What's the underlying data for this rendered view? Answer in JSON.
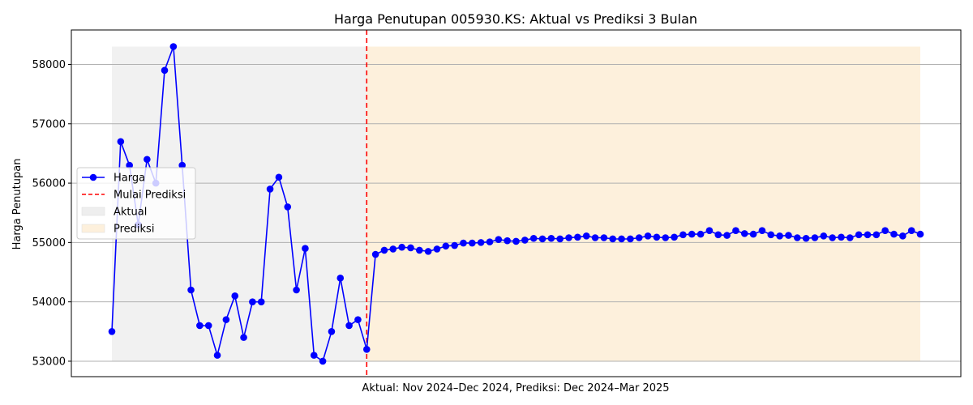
{
  "chart_data": {
    "type": "line",
    "title": "Harga Penutupan 005930.KS: Aktual vs Prediksi 3 Bulan",
    "xlabel": "Aktual: Nov 2024–Dec 2024, Prediksi: Dec 2024–Mar 2025",
    "ylabel": "Harga Penutupan",
    "ylim": [
      52740,
      58580
    ],
    "yticks": [
      53000,
      54000,
      55000,
      56000,
      57000,
      58000
    ],
    "grid": "y",
    "legend_position": "center-left",
    "series": [
      {
        "name": "Harga",
        "color": "#0000ff",
        "marker": "circle",
        "values": [
          53500,
          56700,
          56300,
          55300,
          56400,
          56000,
          57900,
          58300,
          56300,
          54200,
          53600,
          53600,
          53100,
          53700,
          54100,
          53400,
          54000,
          54000,
          55900,
          56100,
          55600,
          54200,
          54900,
          53100,
          53000,
          53500,
          54400,
          53600,
          53700,
          53200,
          54800,
          54870,
          54890,
          54920,
          54910,
          54870,
          54850,
          54890,
          54940,
          54950,
          54990,
          54990,
          55000,
          55010,
          55050,
          55030,
          55020,
          55040,
          55070,
          55060,
          55070,
          55060,
          55080,
          55090,
          55110,
          55080,
          55080,
          55060,
          55060,
          55060,
          55080,
          55110,
          55090,
          55080,
          55090,
          55130,
          55140,
          55140,
          55200,
          55130,
          55120,
          55200,
          55150,
          55140,
          55200,
          55130,
          55110,
          55120,
          55080,
          55070,
          55080,
          55110,
          55080,
          55090,
          55080,
          55130,
          55130,
          55130,
          55200,
          55140,
          55110,
          55200,
          55140
        ]
      }
    ],
    "prediction_start_index": 29,
    "regions": [
      {
        "name": "Aktual",
        "color": "#eeeeee"
      },
      {
        "name": "Prediksi",
        "color": "#fdf0dc"
      }
    ],
    "vline": {
      "name": "Mulai Prediksi",
      "color": "#ff0000",
      "style": "dashed"
    }
  }
}
